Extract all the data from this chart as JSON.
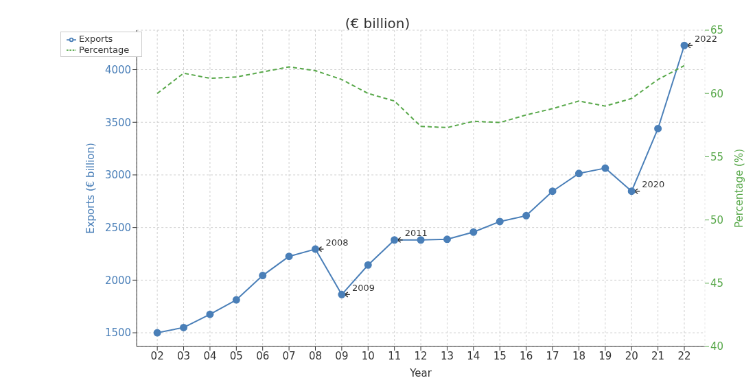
{
  "chart_data": {
    "type": "line",
    "title": "(€ billion)",
    "xlabel": "Year",
    "ylabel": "Exports (€ billion)",
    "y2label": "Percentage (%)",
    "categories": [
      "02",
      "03",
      "04",
      "05",
      "06",
      "07",
      "08",
      "09",
      "10",
      "11",
      "12",
      "13",
      "14",
      "15",
      "16",
      "17",
      "18",
      "19",
      "20",
      "21",
      "22"
    ],
    "series": [
      {
        "name": "Exports",
        "color": "#4a7fb8",
        "marker": "circle",
        "line_style": "solid",
        "values": [
          1500,
          1550,
          1675,
          1813,
          2044,
          2226,
          2295,
          1863,
          2144,
          2382,
          2382,
          2388,
          2457,
          2557,
          2613,
          2845,
          3014,
          3064,
          2845,
          3440,
          4230
        ]
      },
      {
        "name": "Percentage",
        "color": "#58a84a",
        "axis": "y2",
        "marker": "none",
        "line_style": "dashed",
        "values": [
          60,
          61.6,
          61.2,
          61.3,
          61.7,
          62.1,
          61.8,
          61.1,
          60,
          59.4,
          57.4,
          57.3,
          57.8,
          57.7,
          58.3,
          58.8,
          59.4,
          59,
          59.6,
          61.1,
          62.2
        ]
      }
    ],
    "ylim": [
      1370,
      4375
    ],
    "yticks": [
      1500,
      2000,
      2500,
      3000,
      3500,
      4000
    ],
    "y2lim": [
      40,
      65
    ],
    "y2ticks": [
      40,
      45,
      50,
      55,
      60,
      65
    ],
    "grid": true,
    "legend": "top left",
    "annotations": [
      {
        "text": "2008",
        "x": "08",
        "y": 2295
      },
      {
        "text": "2009",
        "x": "09",
        "y": 1863
      },
      {
        "text": "2011",
        "x": "11",
        "y": 2382
      },
      {
        "text": "2020",
        "x": "20",
        "y": 2845
      },
      {
        "text": "2022",
        "x": "22",
        "y": 4230
      }
    ]
  }
}
